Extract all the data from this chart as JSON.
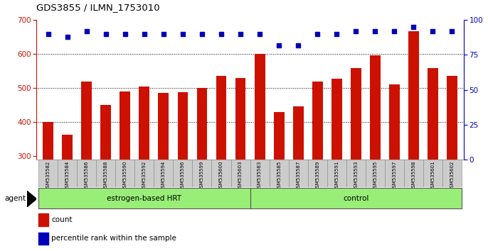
{
  "title": "GDS3855 / ILMN_1753010",
  "samples": [
    "GSM535582",
    "GSM535584",
    "GSM535586",
    "GSM535588",
    "GSM535590",
    "GSM535592",
    "GSM535594",
    "GSM535596",
    "GSM535599",
    "GSM535600",
    "GSM535603",
    "GSM535583",
    "GSM535585",
    "GSM535587",
    "GSM535589",
    "GSM535591",
    "GSM535593",
    "GSM535595",
    "GSM535597",
    "GSM535598",
    "GSM535601",
    "GSM535602"
  ],
  "bar_values": [
    400,
    362,
    520,
    450,
    490,
    505,
    485,
    487,
    500,
    535,
    530,
    600,
    430,
    447,
    520,
    527,
    558,
    597,
    510,
    667,
    558,
    535
  ],
  "percentile_pct": [
    90,
    88,
    92,
    90,
    90,
    90,
    90,
    90,
    90,
    90,
    90,
    90,
    82,
    82,
    90,
    90,
    92,
    92,
    92,
    95,
    92,
    92
  ],
  "group1_label": "estrogen-based HRT",
  "group2_label": "control",
  "group1_count": 11,
  "group2_count": 11,
  "agent_label": "agent",
  "ymin": 290,
  "ymax": 700,
  "yticks_left": [
    300,
    400,
    500,
    600,
    700
  ],
  "yticks_right": [
    0,
    25,
    50,
    75,
    100
  ],
  "bar_color": "#cc1100",
  "dot_color": "#0000bb",
  "group_bg": "#99ee77",
  "legend_count_label": "count",
  "legend_pct_label": "percentile rank within the sample",
  "tick_label_bg": "#cccccc"
}
